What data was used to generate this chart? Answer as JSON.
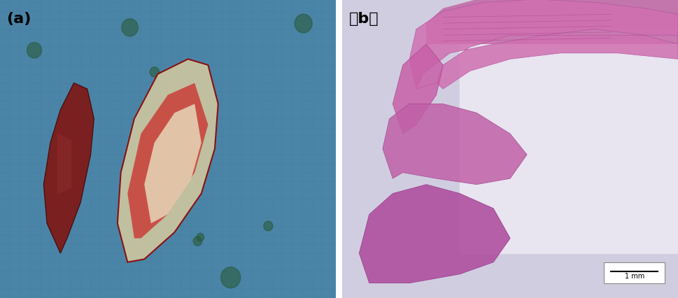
{
  "figsize": [
    9.69,
    4.27
  ],
  "dpi": 100,
  "label_a": "(a)",
  "label_b": "（b）",
  "label_fontsize": 16,
  "label_color": "#000000",
  "scalebar_text": "1 mm",
  "panel_a_bg": "#5b9bbf",
  "panel_b_bg": "#c8c8d8",
  "border_color": "#888888",
  "border_linewidth": 1.0
}
